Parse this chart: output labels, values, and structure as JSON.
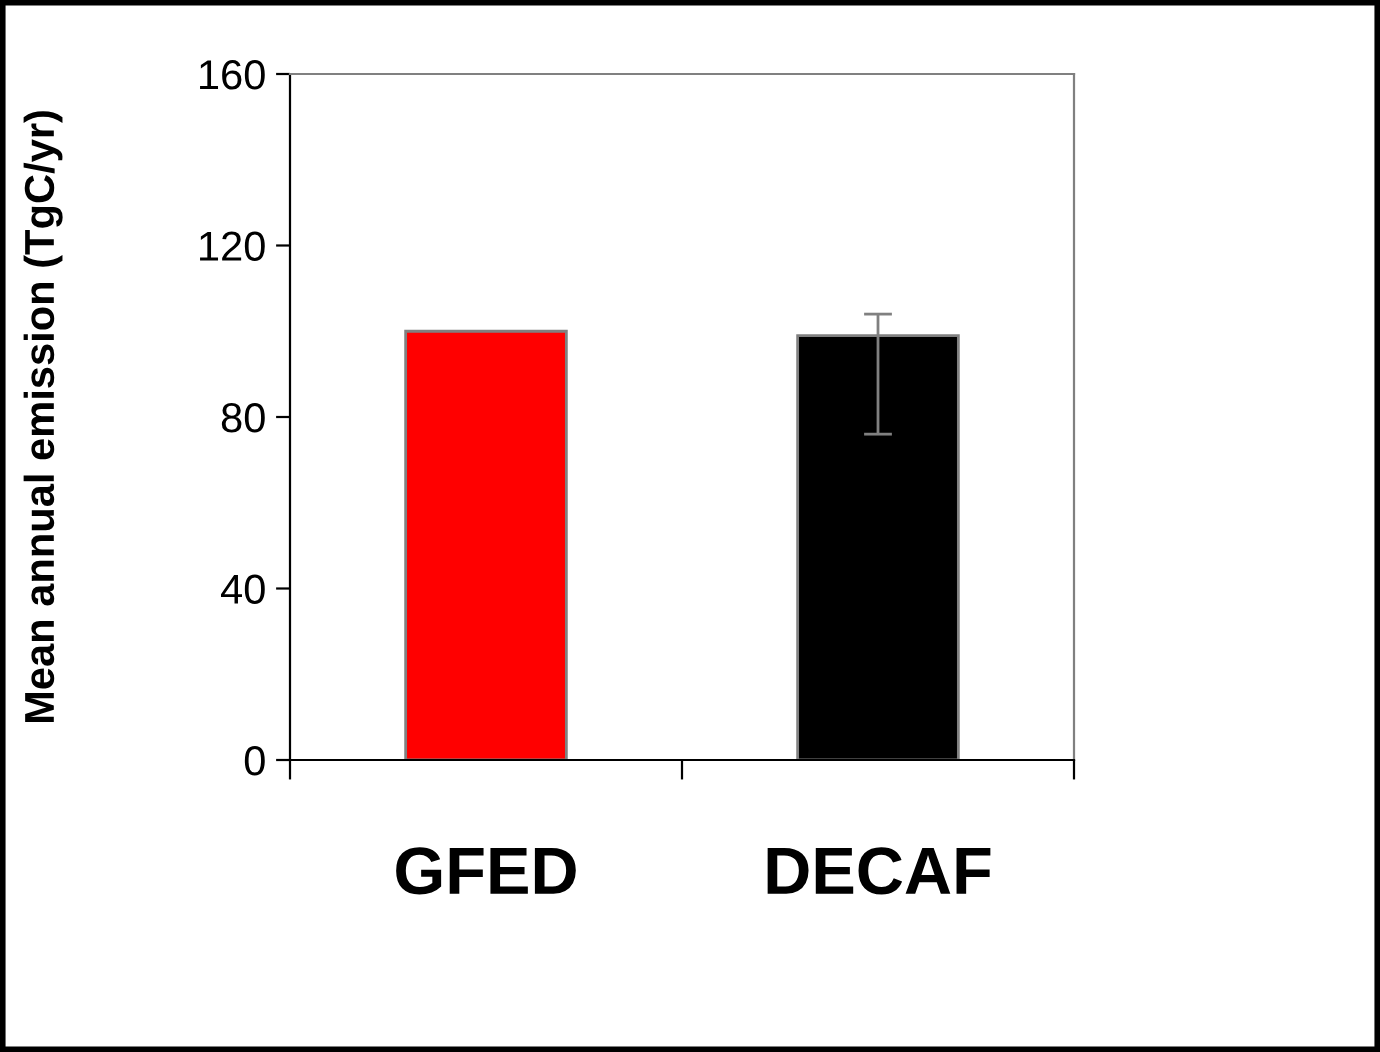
{
  "chart_data": {
    "type": "bar",
    "ylabel": "Mean annual emission (TgC/yr)",
    "categories": [
      "GFED",
      "DECAF"
    ],
    "values": [
      100,
      99
    ],
    "colors": [
      "#ff0000",
      "#000000"
    ],
    "errors": [
      null,
      [
        76,
        104
      ]
    ],
    "ylim": [
      0,
      160
    ],
    "yticks": [
      0,
      40,
      80,
      120,
      160
    ],
    "grid": false,
    "legend": false
  }
}
